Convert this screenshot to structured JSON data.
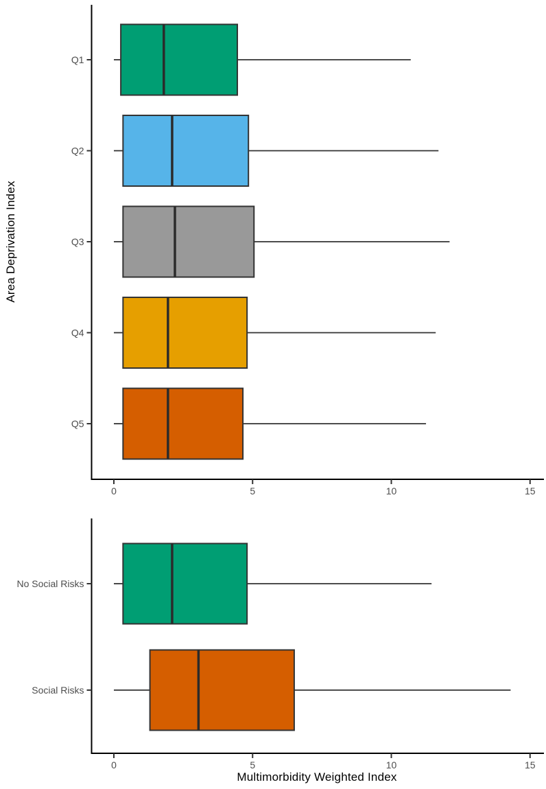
{
  "figure": {
    "y_axis_title_top_panel": "Area Deprivation Index",
    "x_axis_title_bottom_panel": "Multimorbidity Weighted Index"
  },
  "colors": {
    "green": "#009E73",
    "sky_blue": "#56B4E9",
    "gray": "#999999",
    "gold": "#E69F00",
    "vermillion": "#D55E00",
    "box_border": "#333333",
    "median_line": "#2b2b2b",
    "whisker": "#333333",
    "axis_line": "#000000",
    "tick_mark": "#333333",
    "tick_label": "#4d4d4d",
    "axis_title": "#000000",
    "background": "#ffffff"
  },
  "chart_data": [
    {
      "type": "boxplot",
      "orientation": "horizontal",
      "panel": "top",
      "title": "",
      "xlabel": "",
      "ylabel": "Area Deprivation Index",
      "xlim": [
        -0.8,
        15.45
      ],
      "xticks": [
        0,
        5,
        10,
        15
      ],
      "grid": false,
      "legend": "none",
      "categories": [
        "Q1",
        "Q2",
        "Q3",
        "Q4",
        "Q5"
      ],
      "boxes": [
        {
          "label": "Q1",
          "color": "#009E73",
          "whisker_low": 0,
          "q1": 0.25,
          "median": 1.8,
          "q3": 4.45,
          "whisker_high": 10.7
        },
        {
          "label": "Q2",
          "color": "#56B4E9",
          "whisker_low": 0,
          "q1": 0.33,
          "median": 2.1,
          "q3": 4.85,
          "whisker_high": 11.7
        },
        {
          "label": "Q3",
          "color": "#999999",
          "whisker_low": 0,
          "q1": 0.33,
          "median": 2.2,
          "q3": 5.05,
          "whisker_high": 12.1
        },
        {
          "label": "Q4",
          "color": "#E69F00",
          "whisker_low": 0,
          "q1": 0.33,
          "median": 1.95,
          "q3": 4.8,
          "whisker_high": 11.6
        },
        {
          "label": "Q5",
          "color": "#D55E00",
          "whisker_low": 0,
          "q1": 0.33,
          "median": 1.95,
          "q3": 4.65,
          "whisker_high": 11.25
        }
      ]
    },
    {
      "type": "boxplot",
      "orientation": "horizontal",
      "panel": "bottom",
      "title": "",
      "xlabel": "Multimorbidity Weighted Index",
      "ylabel": "",
      "xlim": [
        -0.8,
        15.45
      ],
      "xticks": [
        0,
        5,
        10,
        15
      ],
      "grid": false,
      "legend": "none",
      "categories": [
        "No Social Risks",
        "Social Risks"
      ],
      "boxes": [
        {
          "label": "No Social Risks",
          "color": "#009E73",
          "whisker_low": 0,
          "q1": 0.33,
          "median": 2.1,
          "q3": 4.8,
          "whisker_high": 11.45
        },
        {
          "label": "Social Risks",
          "color": "#D55E00",
          "whisker_low": 0,
          "q1": 1.3,
          "median": 3.05,
          "q3": 6.5,
          "whisker_high": 14.3
        }
      ]
    }
  ]
}
